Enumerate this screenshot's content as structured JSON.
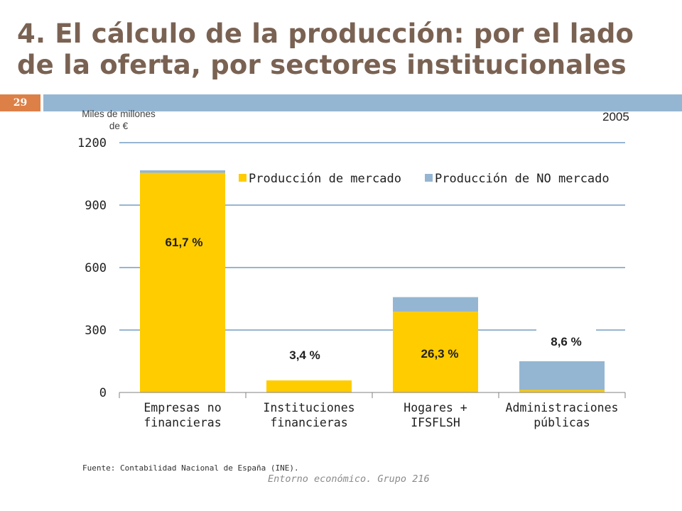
{
  "slide": {
    "title_line1": "4. El cálculo de la producción: por el lado",
    "title_line2": "de la oferta, por sectores institucionales",
    "number": "29",
    "units": [
      "Miles de millones",
      "de €"
    ],
    "year": "2005",
    "source": "Fuente: Contabilidad  Nacional de España (INE).",
    "footer": "Entorno económico. Grupo 216"
  },
  "colors": {
    "market": "#ffcc00",
    "non_market": "#94b6d2",
    "grid": "#2e6ca4",
    "accent": "#dd8047",
    "title": "#7a6253"
  },
  "chart_data": {
    "type": "bar",
    "stacked": true,
    "title": "",
    "xlabel": "",
    "ylabel": "Miles de millones de €",
    "ylim": [
      0,
      1200
    ],
    "yticks": [
      0,
      300,
      600,
      900,
      1200
    ],
    "grid": true,
    "legend_position": "top-right",
    "categories": [
      [
        "Empresas no",
        "financieras"
      ],
      [
        "Instituciones",
        "financieras"
      ],
      [
        "Hogares +",
        "IFSFLSH"
      ],
      [
        "Administraciones",
        "públicas"
      ]
    ],
    "series": [
      {
        "name": "Producción de mercado",
        "color": "#ffcc00",
        "values": [
          1055,
          58,
          388,
          12
        ]
      },
      {
        "name": "Producción de NO mercado",
        "color": "#94b6d2",
        "values": [
          12,
          0,
          70,
          138
        ]
      }
    ],
    "annotations": [
      "61,7 %",
      "3,4 %",
      "26,3 %",
      "8,6 %"
    ]
  }
}
